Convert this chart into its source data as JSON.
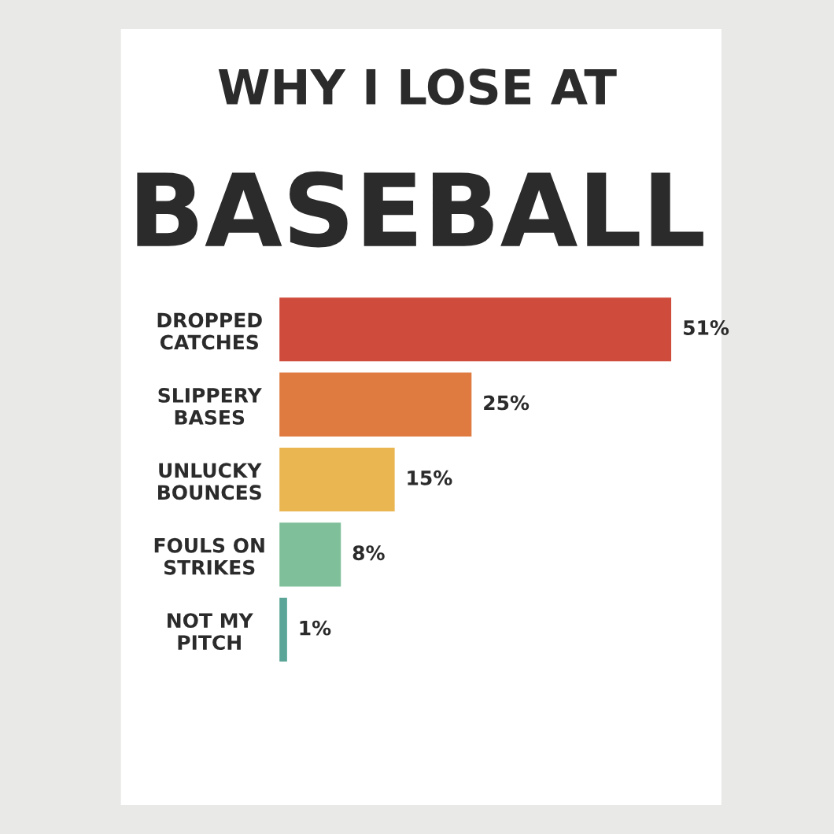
{
  "chart_data": {
    "type": "bar",
    "orientation": "horizontal",
    "title": "WHY I LOSE AT",
    "subtitle": "BASEBALL",
    "categories": [
      "DROPPED\nCATCHES",
      "SLIPPERY\nBASES",
      "UNLUCKY\nBOUNCES",
      "FOULS ON\nSTRIKES",
      "NOT MY\nPITCH"
    ],
    "values": [
      51,
      25,
      15,
      8,
      1
    ],
    "colors": [
      "#cf4b3c",
      "#df7b41",
      "#e9b652",
      "#7fbf9a",
      "#5aa597"
    ],
    "value_labels": [
      "51%",
      "25%",
      "15%",
      "8%",
      "1%"
    ]
  }
}
